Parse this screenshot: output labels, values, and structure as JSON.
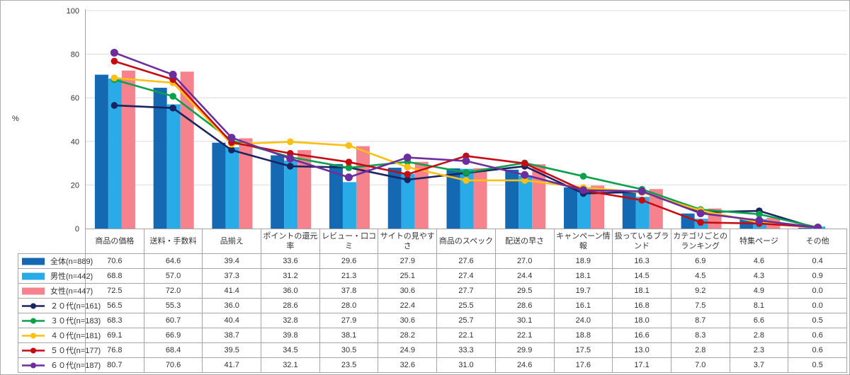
{
  "y_axis": {
    "unit_label": "%",
    "tick_labels": [
      "0",
      "20",
      "40",
      "60",
      "80",
      "100"
    ]
  },
  "chart_data": {
    "type": "bar+line",
    "unit": "%",
    "ylim": [
      0,
      100
    ],
    "yticks": [
      0,
      20,
      40,
      60,
      80,
      100
    ],
    "grid": true,
    "legend_position": "table-left-column",
    "categories": [
      "商品の価格",
      "送料・手数料",
      "品揃え",
      "ポイントの還元率",
      "レビュー・口コミ",
      "サイトの見やすさ",
      "商品のスペック",
      "配送の早さ",
      "キャンペーン情報",
      "扱っているブランド",
      "カテゴリごとのランキング",
      "特集ページ",
      "その他"
    ],
    "series": [
      {
        "name": "全体(n=889)",
        "kind": "bar",
        "color": "#1569b3",
        "values": [
          70.6,
          64.6,
          39.4,
          33.6,
          29.6,
          27.9,
          27.6,
          27.0,
          18.9,
          16.3,
          6.9,
          4.6,
          0.4
        ]
      },
      {
        "name": "男性(n=442)",
        "kind": "bar",
        "color": "#29abe8",
        "values": [
          68.8,
          57.0,
          37.3,
          31.2,
          21.3,
          25.1,
          27.4,
          24.4,
          18.1,
          14.5,
          4.5,
          4.3,
          0.9
        ]
      },
      {
        "name": "女性(n=447)",
        "kind": "bar",
        "color": "#f6828d",
        "values": [
          72.5,
          72.0,
          41.4,
          36.0,
          37.8,
          30.6,
          27.7,
          29.5,
          19.7,
          18.1,
          9.2,
          4.9,
          0.0
        ]
      },
      {
        "name": "２０代(n=161)",
        "kind": "line",
        "color": "#1a2460",
        "values": [
          56.5,
          55.3,
          36.0,
          28.6,
          28.0,
          22.4,
          25.5,
          28.6,
          16.1,
          16.8,
          7.5,
          8.1,
          0.0
        ]
      },
      {
        "name": "３０代(n=183)",
        "kind": "line",
        "color": "#0ca04d",
        "values": [
          68.3,
          60.7,
          40.4,
          32.8,
          27.9,
          30.6,
          25.7,
          30.1,
          24.0,
          18.0,
          8.7,
          6.6,
          0.5
        ]
      },
      {
        "name": "４０代(n=181)",
        "kind": "line",
        "color": "#fcc012",
        "values": [
          69.1,
          66.9,
          38.7,
          39.8,
          38.1,
          28.2,
          22.1,
          22.1,
          18.8,
          16.6,
          8.3,
          2.8,
          0.6
        ]
      },
      {
        "name": "５０代(n=177)",
        "kind": "line",
        "color": "#c60c13",
        "values": [
          76.8,
          68.4,
          39.5,
          34.5,
          30.5,
          24.9,
          33.3,
          29.9,
          17.5,
          13.0,
          2.8,
          2.3,
          0.6
        ]
      },
      {
        "name": "６０代(n=187)",
        "kind": "line",
        "color": "#6c2d9d",
        "values": [
          80.7,
          70.6,
          41.7,
          32.1,
          23.5,
          32.6,
          31.0,
          24.6,
          17.6,
          17.1,
          7.0,
          3.7,
          0.5
        ]
      }
    ],
    "style": {
      "grid_color": "#dcdcdc",
      "axis_color": "#a0a0a0",
      "table_border_color": "#a6a6a6",
      "text_color": "#333333"
    }
  }
}
